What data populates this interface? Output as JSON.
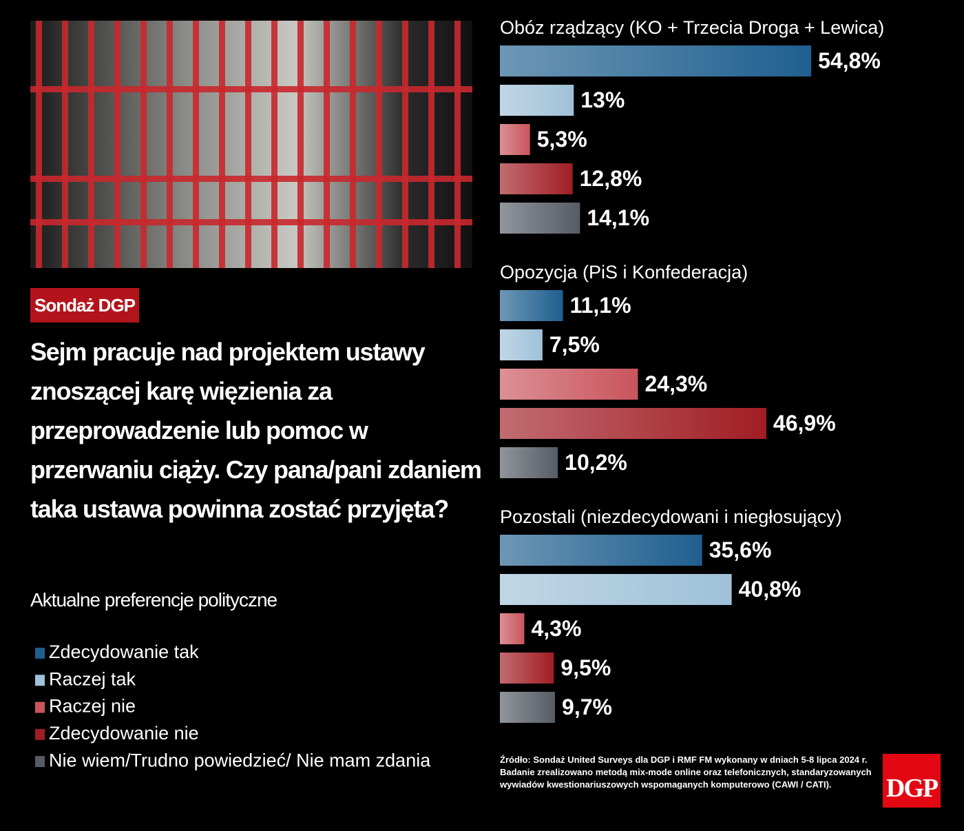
{
  "tag": "Sondaż DGP",
  "source": "Źródło: Sondaż United Surveys dla DGP i RMF FM wykonany w dniach 5-8 lipca 2024 r. Badanie zrealizowano metodą mix-mode online oraz telefonicznych, standaryzowanych wywiadów kwestionariuszowych wspomaganych komputerowo (CAWI / CATI).",
  "logo": "DGP",
  "chart_data": {
    "type": "bar",
    "orientation": "horizontal",
    "title": "Sejm pracuje nad projektem ustawy znoszącej karę więzienia za przeprowadzenie lub pomoc w przerwaniu ciąży. Czy pana/pani zdaniem taka ustawa powinna zostać przyjęta?",
    "subtitle": "Aktualne preferencje polityczne",
    "categories": [
      "Obóz rządzący (KO + Trzecia Droga + Lewica)",
      "Opozycja (PiS i Konfederacja)",
      "Pozostali (niezdecydowani i niegłosujący)"
    ],
    "series": [
      {
        "name": "Zdecydowanie tak",
        "color": "#1f5f8f",
        "values": [
          54.8,
          11.1,
          35.6
        ],
        "value_labels": [
          "54,8%",
          "11,1%",
          "35,6%"
        ]
      },
      {
        "name": "Raczej tak",
        "color": "#9fc1d8",
        "values": [
          13,
          7.5,
          40.8
        ],
        "value_labels": [
          "13%",
          "7,5%",
          "40,8%"
        ]
      },
      {
        "name": "Raczej nie",
        "color": "#c9545c",
        "values": [
          5.3,
          24.3,
          4.3
        ],
        "value_labels": [
          "5,3%",
          "24,3%",
          "4,3%"
        ]
      },
      {
        "name": "Zdecydowanie nie",
        "color": "#a01d24",
        "values": [
          12.8,
          46.9,
          9.5
        ],
        "value_labels": [
          "12,8%",
          "46,9%",
          "9,5%"
        ]
      },
      {
        "name": "Nie wiem/Trudno powiedzieć/ Nie mam zdania",
        "color": "#565c66",
        "values": [
          14.1,
          10.2,
          9.7
        ],
        "value_labels": [
          "14,1%",
          "10,2%",
          "9,7%"
        ]
      }
    ]
  }
}
